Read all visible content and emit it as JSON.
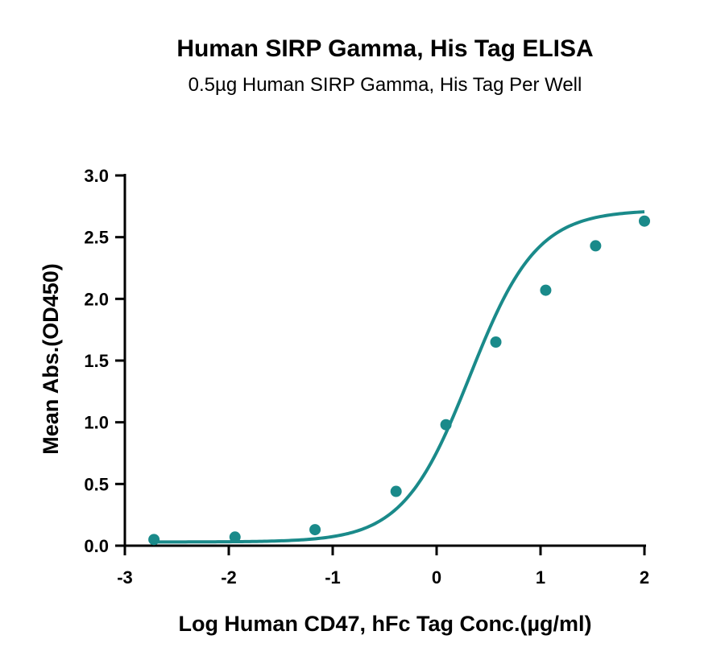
{
  "chart_data": {
    "type": "scatter",
    "title": "Human SIRP Gamma, His Tag ELISA",
    "subtitle": "0.5µg Human SIRP Gamma, His Tag Per Well",
    "xlabel": "Log Human CD47, hFc Tag Conc.(µg/ml)",
    "ylabel": "Mean Abs.(OD450)",
    "xlim": [
      -3,
      2
    ],
    "ylim": [
      0,
      3
    ],
    "xticks": [
      -3,
      -2,
      -1,
      0,
      1,
      2
    ],
    "xtick_labels": [
      "-3",
      "-2",
      "-1",
      "0",
      "1",
      "2"
    ],
    "yticks": [
      0.0,
      0.5,
      1.0,
      1.5,
      2.0,
      2.5,
      3.0
    ],
    "ytick_labels": [
      "0.0",
      "0.5",
      "1.0",
      "1.5",
      "2.0",
      "2.5",
      "3.0"
    ],
    "grid": false,
    "series": [
      {
        "x": [
          -2.72,
          -1.94,
          -1.17,
          -0.39,
          0.09,
          0.57,
          1.05,
          1.53,
          2.0
        ],
        "y": [
          0.05,
          0.07,
          0.13,
          0.44,
          0.98,
          1.65,
          2.07,
          2.43,
          2.63
        ],
        "color": "#1a8a8a",
        "fit": "sigmoidal 4PL curve"
      }
    ]
  }
}
